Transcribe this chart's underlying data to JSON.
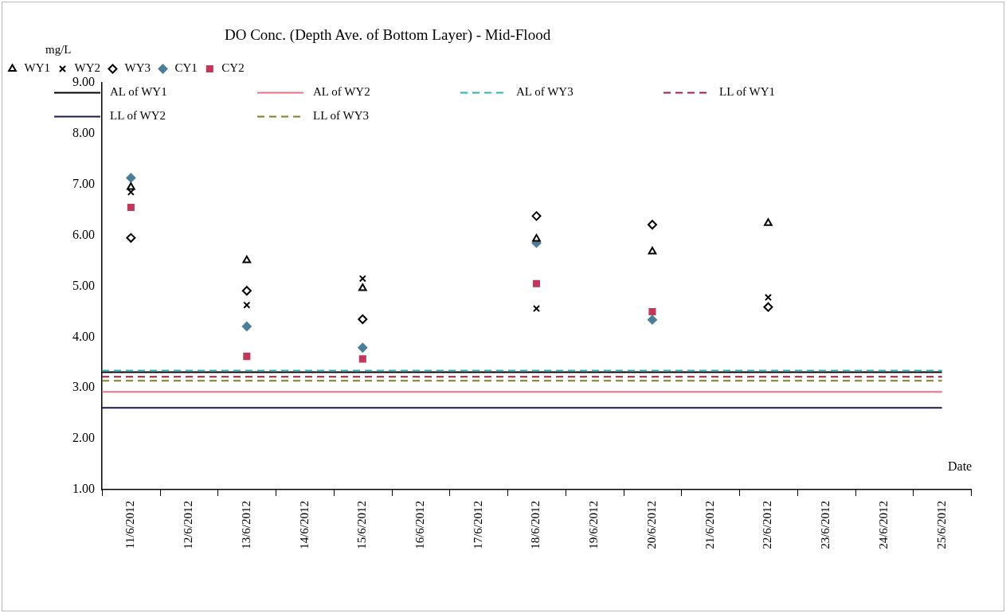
{
  "chart_data": {
    "type": "scatter",
    "title": "DO Conc. (Depth Ave. of Bottom Layer) - Mid-Flood",
    "xlabel": "Date",
    "ylabel": "mg/L",
    "categories": [
      "11/6/2012",
      "12/6/2012",
      "13/6/2012",
      "14/6/2012",
      "15/6/2012",
      "16/6/2012",
      "17/6/2012",
      "18/6/2012",
      "19/6/2012",
      "20/6/2012",
      "21/6/2012",
      "22/6/2012",
      "23/6/2012",
      "24/6/2012",
      "25/6/2012"
    ],
    "series": [
      {
        "name": "WY1",
        "color": "#000000",
        "marker": "triangle",
        "values": [
          6.95,
          null,
          5.51,
          null,
          4.96,
          null,
          null,
          5.93,
          null,
          5.68,
          null,
          6.24,
          null,
          null,
          null
        ]
      },
      {
        "name": "WY2",
        "color": "#000000",
        "marker": "cross",
        "values": [
          6.85,
          null,
          4.63,
          null,
          5.15,
          null,
          null,
          4.56,
          null,
          null,
          null,
          4.78,
          null,
          null,
          null
        ]
      },
      {
        "name": "WY3",
        "color": "#000000",
        "marker": "diamond",
        "values": [
          5.95,
          null,
          4.91,
          null,
          4.35,
          null,
          null,
          6.38,
          null,
          6.21,
          null,
          4.59,
          null,
          null,
          null
        ]
      },
      {
        "name": "CY1",
        "color": "#4a7f9a",
        "marker": "diamond",
        "values": [
          7.13,
          null,
          4.21,
          null,
          3.79,
          null,
          null,
          5.85,
          null,
          4.34,
          null,
          null,
          null,
          null,
          null
        ]
      },
      {
        "name": "CY2",
        "color": "#c0395a",
        "marker": "square",
        "values": [
          6.55,
          null,
          3.62,
          null,
          3.57,
          null,
          null,
          5.05,
          null,
          4.5,
          null,
          null,
          null,
          null,
          null
        ]
      }
    ],
    "ref_lines": [
      {
        "axis": "y",
        "value": 3.31,
        "label": "AL of WY1",
        "color": "#000000",
        "line_style": "solid"
      },
      {
        "axis": "y",
        "value": 2.92,
        "label": "AL of WY2",
        "color": "#e87080",
        "line_style": "solid"
      },
      {
        "axis": "y",
        "value": 3.34,
        "label": "AL of WY3",
        "color": "#30b0b0",
        "line_style": "dashed"
      },
      {
        "axis": "y",
        "value": 3.22,
        "label": "LL of WY1",
        "color": "#a02040",
        "line_style": "dashed"
      },
      {
        "axis": "y",
        "value": 2.61,
        "label": "LL of WY2",
        "color": "#1a1a50",
        "line_style": "solid"
      },
      {
        "axis": "y",
        "value": 3.14,
        "label": "LL of WY3",
        "color": "#808020",
        "line_style": "dashed"
      }
    ],
    "ylim": [
      1,
      9
    ],
    "yticks": [
      {
        "value": 1,
        "label": "1.00"
      },
      {
        "value": 2,
        "label": "2.00"
      },
      {
        "value": 3,
        "label": "3.00"
      },
      {
        "value": 4,
        "label": "4.00"
      },
      {
        "value": 5,
        "label": "5.00"
      },
      {
        "value": 6,
        "label": "6.00"
      },
      {
        "value": 7,
        "label": "7.00"
      },
      {
        "value": 8,
        "label": "8.00"
      },
      {
        "value": 9,
        "label": "9.00"
      }
    ],
    "grid": false,
    "legend": "top"
  }
}
